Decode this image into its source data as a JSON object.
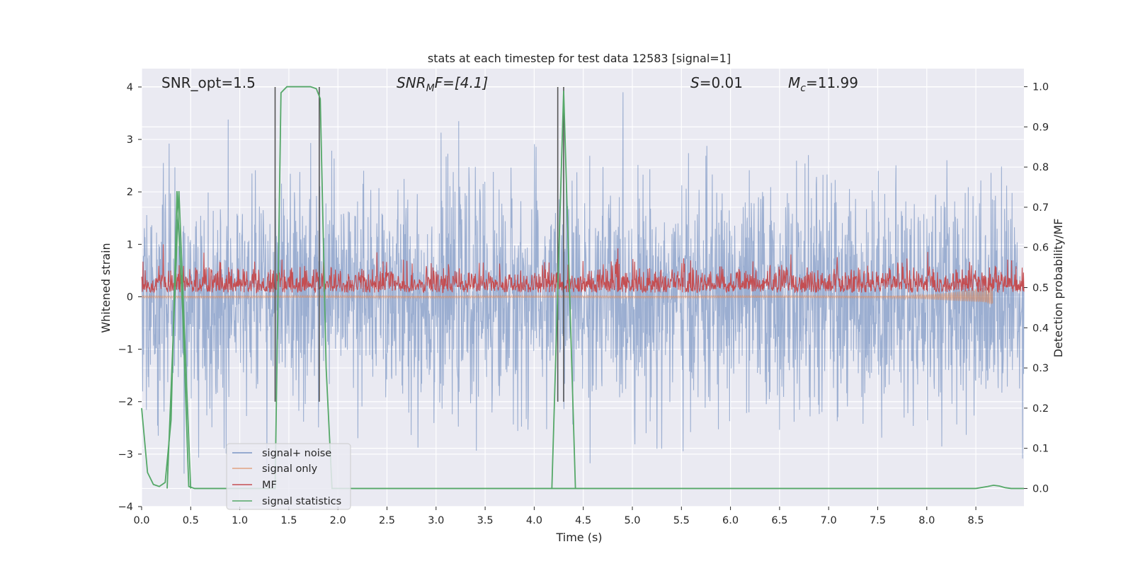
{
  "chart_data": {
    "type": "line",
    "title": "stats at each timestep for test data 12583 [signal=1]",
    "xlabel": "Time (s)",
    "ylabel_left": "Whitened strain",
    "ylabel_right": "Detection probability/MF",
    "xlim": [
      0.0,
      8.99
    ],
    "ylim_left": [
      -4.0,
      4.35
    ],
    "ylim_right": [
      -0.045,
      1.045
    ],
    "x_ticks": [
      "0.0",
      "0.5",
      "1.0",
      "1.5",
      "2.0",
      "2.5",
      "3.0",
      "3.5",
      "4.0",
      "4.5",
      "5.0",
      "5.5",
      "6.0",
      "6.5",
      "7.0",
      "7.5",
      "8.0",
      "8.5"
    ],
    "y_ticks_left": [
      "4",
      "3",
      "2",
      "1",
      "0",
      "−1",
      "−2",
      "−3",
      "−4"
    ],
    "y_ticks_right": [
      "1.0",
      "0.9",
      "0.8",
      "0.7",
      "0.6",
      "0.5",
      "0.4",
      "0.3",
      "0.2",
      "0.1",
      "0.0"
    ],
    "grid": true,
    "legend_position": "lower-left",
    "annotations": {
      "snr_opt": "SNR_opt=1.5",
      "snr_mf_main": "SNR",
      "snr_mf_sub": "M",
      "snr_mf_rest": "F=[4.1]",
      "s_italic": "S",
      "s_rest": "=0.01",
      "mc_main": "M",
      "mc_sub": "c",
      "mc_rest": "=11.99"
    },
    "vlines_x": [
      1.36,
      1.81,
      4.24,
      4.3
    ],
    "series": [
      {
        "name": "signal+ noise",
        "color": "#4c72b0",
        "opacity": 0.5,
        "axis": "left",
        "description_values": {
          "typical_range": [
            -2.0,
            2.0
          ],
          "peaks_up": 3.9,
          "peaks_down": -3.5
        }
      },
      {
        "name": "signal only",
        "color": "#dd8452",
        "opacity": 0.5,
        "axis": "left",
        "x": [
          0.0,
          7.5,
          7.8,
          8.0,
          8.2,
          8.4,
          8.55,
          8.62,
          8.65,
          8.67
        ],
        "amplitude": [
          0.02,
          0.02,
          0.03,
          0.05,
          0.08,
          0.12,
          0.16,
          0.2,
          0.24,
          0.26
        ]
      },
      {
        "name": "MF",
        "color": "#c44e52",
        "axis": "left",
        "description_values": {
          "typical_range": [
            0.0,
            0.75
          ],
          "peak": 1.0
        }
      },
      {
        "name": "signal statistics",
        "color": "#55a868",
        "axis": "right",
        "x": [
          0.0,
          0.06,
          0.12,
          0.18,
          0.24,
          0.3,
          0.36,
          0.42,
          0.48,
          0.54,
          0.6,
          0.66,
          0.72,
          0.78,
          0.84,
          0.9,
          0.96,
          1.02,
          1.08,
          1.14,
          1.2,
          1.26,
          1.32,
          1.36,
          1.42,
          1.48,
          1.54,
          1.6,
          1.66,
          1.72,
          1.78,
          1.82,
          1.88,
          1.94,
          2.0,
          2.1,
          2.4,
          3.0,
          3.5,
          4.0,
          4.1,
          4.16,
          4.22,
          4.28,
          4.34,
          4.4,
          4.46,
          4.52,
          4.6,
          5.0,
          6.0,
          7.0,
          8.0,
          8.5,
          8.62,
          8.68,
          8.74,
          8.8,
          8.86,
          8.99
        ],
        "y": [
          0.2,
          0.04,
          0.01,
          0.005,
          0.015,
          0.17,
          0.74,
          0.43,
          0.005,
          0.0,
          0.0,
          0.0,
          0.0,
          0.0,
          0.0,
          0.0,
          0.0,
          0.0,
          0.0,
          0.0,
          0.0,
          0.0,
          0.0,
          0.0,
          0.985,
          1.0,
          1.0,
          1.0,
          1.0,
          1.0,
          0.995,
          0.97,
          0.3,
          0.0,
          0.0,
          0.0,
          0.0,
          0.0,
          0.0,
          0.0,
          0.0,
          0.0,
          0.0,
          0.0,
          0.0,
          0.0,
          0.0,
          0.0,
          0.0,
          0.0,
          0.0,
          0.0,
          0.0,
          0.0,
          0.005,
          0.008,
          0.006,
          0.002,
          0.0,
          0.0
        ]
      }
    ],
    "peaks_signal_statistics": [
      {
        "x": 0.38,
        "y": 0.74
      },
      {
        "x": 4.3,
        "y": 0.99
      }
    ]
  }
}
